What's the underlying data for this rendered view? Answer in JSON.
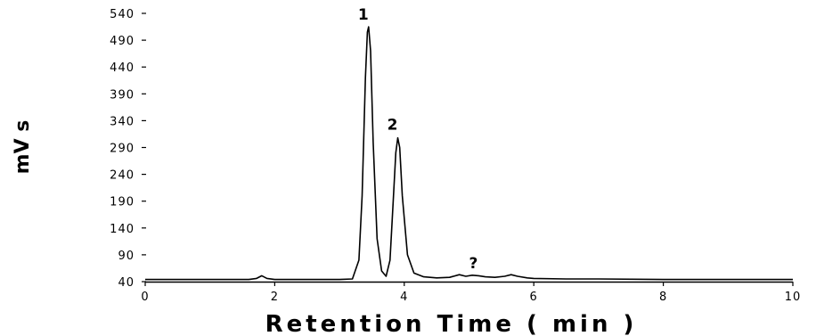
{
  "chart_data": {
    "type": "line",
    "title": "",
    "xlabel": "Retention Time ( min )",
    "ylabel": "mV s",
    "xlim": [
      0,
      10
    ],
    "ylim": [
      40,
      540
    ],
    "x_ticks": [
      "0",
      "2",
      "4",
      "6",
      "8",
      "10"
    ],
    "y_ticks": [
      "40",
      "90",
      "140",
      "190",
      "240",
      "290",
      "340",
      "390",
      "440",
      "490",
      "540"
    ],
    "grid": false,
    "legend": "none",
    "annotations": [
      {
        "text": "1",
        "x": 3.45,
        "y": 515
      },
      {
        "text": "2",
        "x": 3.9,
        "y": 310
      },
      {
        "text": "?",
        "x": 5.15,
        "y": 52
      }
    ],
    "series": [
      {
        "x": [
          0.0,
          1.6,
          1.72,
          1.8,
          1.88,
          2.0,
          3.0,
          3.2,
          3.3,
          3.35,
          3.4,
          3.43,
          3.45,
          3.48,
          3.52,
          3.58,
          3.65,
          3.72,
          3.78,
          3.83,
          3.87,
          3.9,
          3.93,
          3.97,
          4.05,
          4.15,
          4.3,
          4.5,
          4.7,
          4.85,
          4.95,
          5.05,
          5.15,
          5.25,
          5.4,
          5.55,
          5.65,
          5.75,
          5.9,
          6.0,
          6.5,
          7.0,
          8.0,
          9.0,
          10.0
        ],
        "values": [
          44,
          44,
          46,
          51,
          46,
          44,
          44,
          45,
          80,
          200,
          420,
          505,
          515,
          470,
          300,
          120,
          60,
          50,
          80,
          190,
          280,
          308,
          290,
          200,
          90,
          56,
          49,
          47,
          48,
          53,
          50,
          52,
          51,
          49,
          48,
          50,
          53,
          50,
          47,
          46,
          45,
          45,
          44,
          44,
          44
        ]
      }
    ]
  }
}
